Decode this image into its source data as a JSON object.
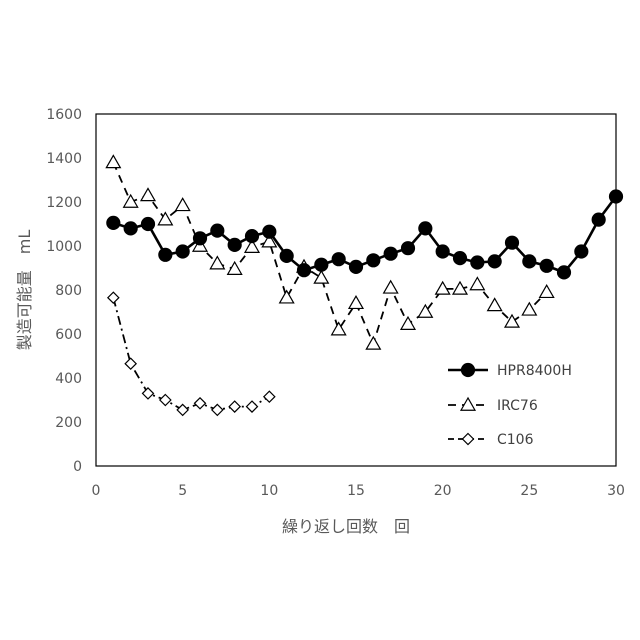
{
  "chart_data": {
    "type": "line",
    "xlabel": "繰り返し回数　回",
    "ylabel": "製造可能量　mL",
    "xlim": [
      0,
      30
    ],
    "ylim": [
      0,
      1600
    ],
    "xticks": [
      0,
      5,
      10,
      15,
      20,
      25,
      30
    ],
    "yticks": [
      0,
      200,
      400,
      600,
      800,
      1000,
      1200,
      1400,
      1600
    ],
    "grid": false,
    "legend_position": "right",
    "series": [
      {
        "name": "HPR8400H",
        "marker": "filled-circle",
        "line_style": "solid",
        "color": "#000000",
        "x": [
          1,
          2,
          3,
          4,
          5,
          6,
          7,
          8,
          9,
          10,
          11,
          12,
          13,
          14,
          15,
          16,
          17,
          18,
          19,
          20,
          21,
          22,
          23,
          24,
          25,
          26,
          27,
          28,
          29,
          30
        ],
        "y": [
          1105,
          1080,
          1100,
          960,
          975,
          1035,
          1070,
          1005,
          1045,
          1065,
          955,
          890,
          915,
          940,
          905,
          935,
          965,
          990,
          1080,
          975,
          945,
          925,
          930,
          1015,
          930,
          910,
          880,
          975,
          1120,
          1225
        ]
      },
      {
        "name": "IRC76",
        "marker": "open-triangle",
        "line_style": "dashed",
        "color": "#000000",
        "x": [
          1,
          2,
          3,
          4,
          5,
          6,
          7,
          8,
          9,
          10,
          11,
          12,
          13,
          14,
          15,
          16,
          17,
          18,
          19,
          20,
          21,
          22,
          23,
          24,
          25,
          26
        ],
        "y": [
          1380,
          1200,
          1230,
          1120,
          1185,
          1000,
          920,
          895,
          995,
          1020,
          765,
          905,
          855,
          620,
          740,
          555,
          810,
          645,
          700,
          805,
          805,
          825,
          730,
          655,
          710,
          790
        ]
      },
      {
        "name": "C106",
        "marker": "open-diamond",
        "line_style": "dash-dot",
        "color": "#000000",
        "x": [
          1,
          2,
          3,
          4,
          5,
          6,
          7,
          8,
          9,
          10
        ],
        "y": [
          765,
          465,
          330,
          300,
          255,
          285,
          255,
          270,
          270,
          315
        ]
      }
    ]
  }
}
